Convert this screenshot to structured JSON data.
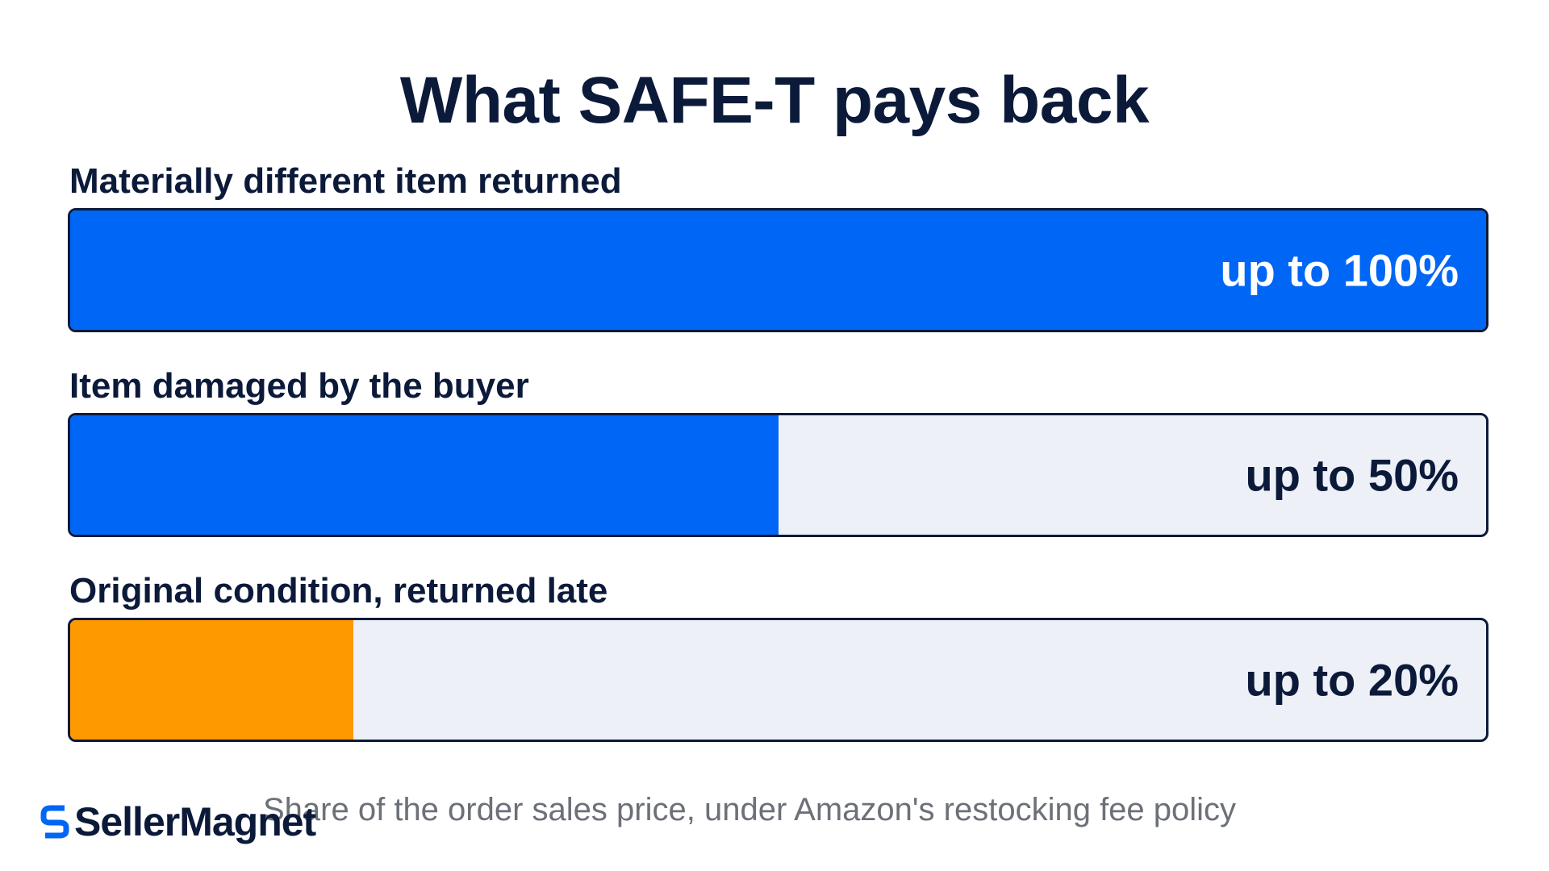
{
  "chart_data": {
    "type": "bar",
    "orientation": "horizontal",
    "title": "What SAFE-T pays back",
    "categories": [
      "Materially different item returned",
      "Item damaged by the buyer",
      "Original condition, returned late"
    ],
    "values": [
      100,
      50,
      20
    ],
    "value_labels": [
      "up to 100%",
      "up to 50%",
      "up to 20%"
    ],
    "xlim": [
      0,
      100
    ],
    "unit": "%",
    "colors": [
      "#0066f5",
      "#0066f5",
      "#ff9900"
    ],
    "track_color": "#edf0f7",
    "grid": false,
    "legend": "none",
    "footnote": "Share of the order sales price, under Amazon's restocking fee policy"
  },
  "brand": {
    "name": "SellerMagnet",
    "logo_icon": "s-logo-icon",
    "accent": "#0066f5"
  }
}
